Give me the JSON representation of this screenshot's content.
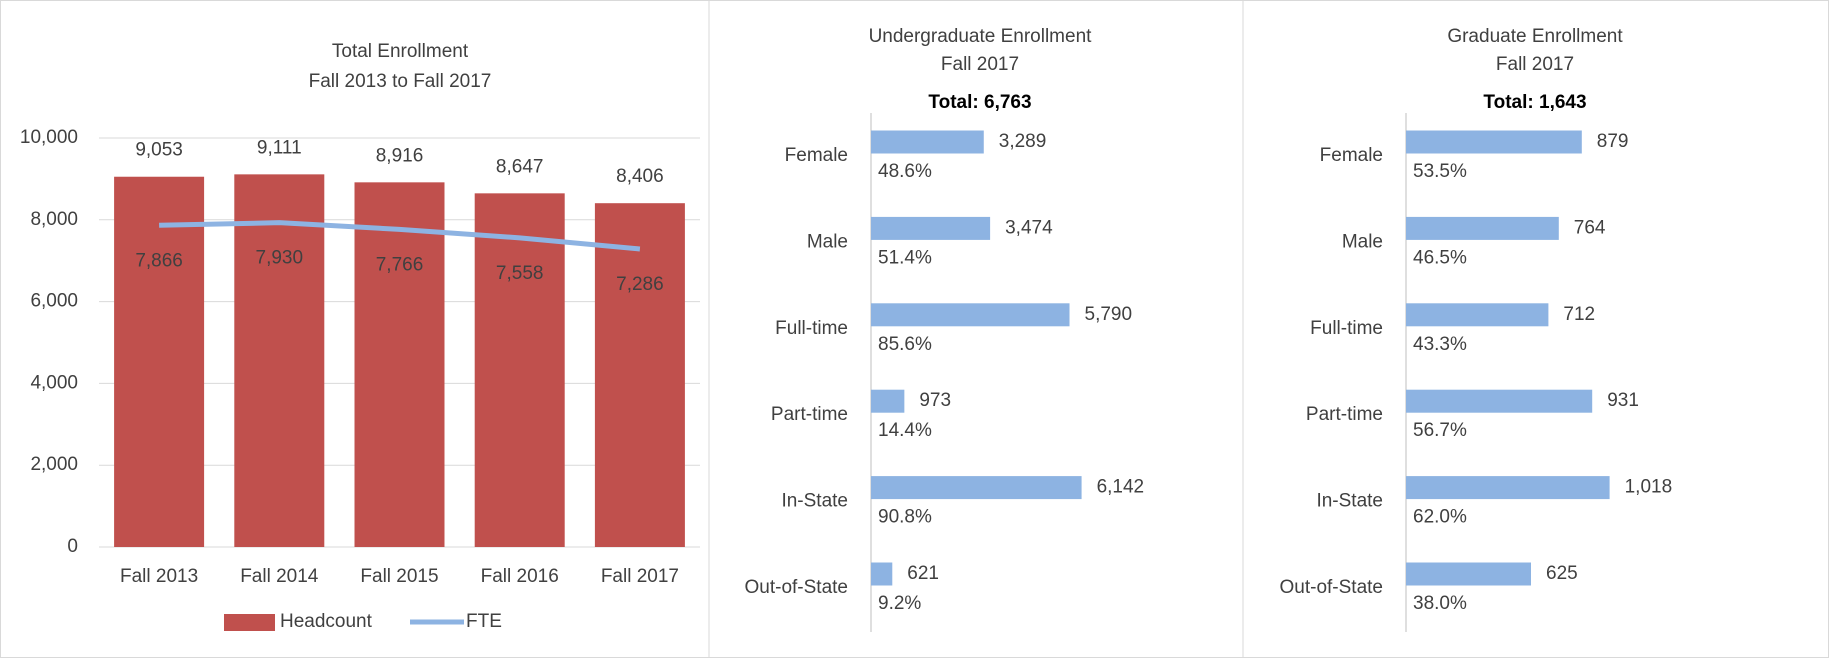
{
  "chart_data": [
    {
      "type": "bar",
      "title": "Total Enrollment",
      "subtitle": "Fall 2013 to Fall 2017",
      "categories": [
        "Fall 2013",
        "Fall 2014",
        "Fall 2015",
        "Fall 2016",
        "Fall 2017"
      ],
      "series": [
        {
          "name": "Headcount",
          "type": "bar",
          "color": "#c0504d",
          "values": [
            9053,
            9111,
            8916,
            8647,
            8406
          ],
          "value_labels": [
            "9,053",
            "9,111",
            "8,916",
            "8,647",
            "8,406"
          ]
        },
        {
          "name": "FTE",
          "type": "line",
          "color": "#8db3e2",
          "values": [
            7866,
            7930,
            7766,
            7558,
            7286
          ],
          "value_labels": [
            "7,866",
            "7,930",
            "7,766",
            "7,558",
            "7,286"
          ]
        }
      ],
      "ylim": [
        0,
        10000
      ],
      "yticks": [
        0,
        {
          "value": 2000,
          "label": "2,000"
        },
        {
          "value": 4000,
          "label": "4,000"
        },
        {
          "value": 6000,
          "label": "6,000"
        },
        {
          "value": 8000,
          "label": "8,000"
        },
        {
          "value": 10000,
          "label": "10,000"
        }
      ],
      "grid": true,
      "legend": "bottom"
    },
    {
      "type": "hbar",
      "title": "Undergraduate Enrollment",
      "subtitle": "Fall 2017",
      "annotation": "Total: 6,763",
      "categories": [
        "Female",
        "Male",
        "Full-time",
        "Part-time",
        "In-State",
        "Out-of-State"
      ],
      "values": [
        3289,
        3474,
        5790,
        973,
        6142,
        621
      ],
      "value_labels": [
        "3,289",
        "3,474",
        "5,790",
        "973",
        "6,142",
        "621"
      ],
      "percent_labels": [
        "48.6%",
        "51.4%",
        "85.6%",
        "14.4%",
        "90.8%",
        "9.2%"
      ],
      "color": "#8db3e2",
      "xlim": [
        0,
        7000
      ]
    },
    {
      "type": "hbar",
      "title": "Graduate Enrollment",
      "subtitle": "Fall 2017",
      "annotation": "Total: 1,643",
      "categories": [
        "Female",
        "Male",
        "Full-time",
        "Part-time",
        "In-State",
        "Out-of-State"
      ],
      "values": [
        879,
        764,
        712,
        931,
        1018,
        625
      ],
      "value_labels": [
        "879",
        "764",
        "712",
        "931",
        "1,018",
        "625"
      ],
      "percent_labels": [
        "53.5%",
        "46.5%",
        "43.3%",
        "56.7%",
        "62.0%",
        "38.0%"
      ],
      "color": "#8db3e2",
      "xlim": [
        0,
        1200
      ]
    }
  ]
}
